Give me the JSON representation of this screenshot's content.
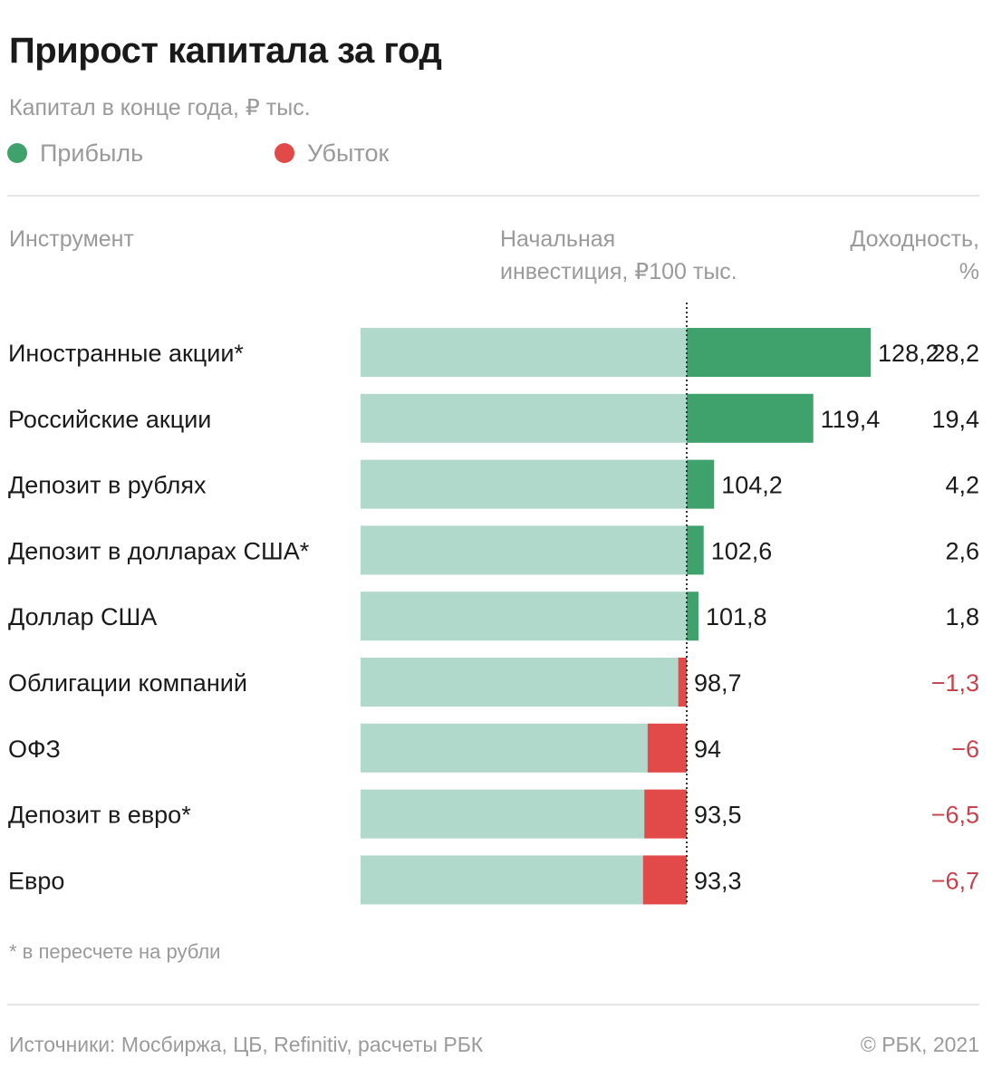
{
  "header": {
    "title": "Прирост капитала за год",
    "subtitle": "Капитал в конце года, ₽ тыс."
  },
  "legend": {
    "profit": "Прибыль",
    "loss": "Убыток"
  },
  "columns": {
    "instrument": "Инструмент",
    "initial_line1": "Начальная",
    "initial_line2": "инвестиция, ₽100 тыс.",
    "yield_line1": "Доходность,",
    "yield_line2": "%"
  },
  "colors": {
    "base": "#b0d9cb",
    "profit": "#3fa26c",
    "loss": "#e24a4a",
    "loss_text": "#c8424e",
    "reference_line": "#333333"
  },
  "chart_data": {
    "type": "bar",
    "orientation": "horizontal",
    "title": "Прирост капитала за год",
    "subtitle": "Капитал в конце года, ₽ тыс.",
    "baseline": 100,
    "xlim": [
      50,
      130
    ],
    "categories": [
      "Иностранные акции*",
      "Российские акции",
      "Депозит в рублях",
      "Депозит в долларах США*",
      "Доллар США",
      "Облигации компаний",
      "ОФЗ",
      "Депозит в евро*",
      "Евро"
    ],
    "values": [
      128.2,
      119.4,
      104.2,
      102.6,
      101.8,
      98.7,
      94,
      93.5,
      93.3
    ],
    "value_labels": [
      "128,2",
      "119,4",
      "104,2",
      "102,6",
      "101,8",
      "98,7",
      "94",
      "93,5",
      "93,3"
    ],
    "yield_values": [
      28.2,
      19.4,
      4.2,
      2.6,
      1.8,
      -1.3,
      -6,
      -6.5,
      -6.7
    ],
    "yield_labels": [
      "28,2",
      "19,4",
      "4,2",
      "2,6",
      "1,8",
      "−1,3",
      "−6",
      "−6,5",
      "−6,7"
    ]
  },
  "footer": {
    "footnote": "* в пересчете на рубли",
    "source": "Источники: Мосбиржа, ЦБ, Refinitiv, расчеты РБК",
    "copyright": "© РБК, 2021"
  }
}
